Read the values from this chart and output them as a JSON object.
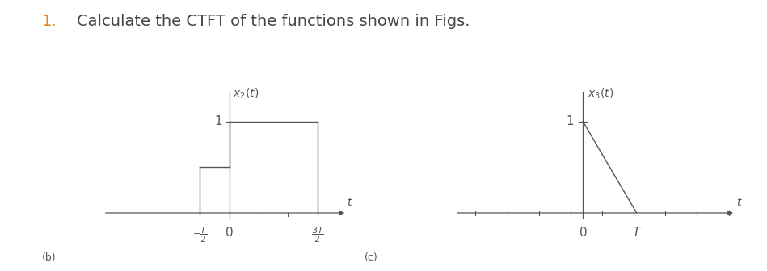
{
  "title_number": "1.",
  "title_text": "Calculate the CTFT of the functions shown in Figs.",
  "title_color": "#444444",
  "title_number_color": "#e8821a",
  "bg_color": "#ffffff",
  "line_color": "#555555",
  "font_size_title": 14,
  "font_size_graph_label": 10,
  "font_size_tick": 11,
  "font_size_sublabel": 9,
  "fig2_label_b": "(b)",
  "fig3_label_c": "(c)",
  "T_fig2": 0.5,
  "T_fig3": 0.35
}
